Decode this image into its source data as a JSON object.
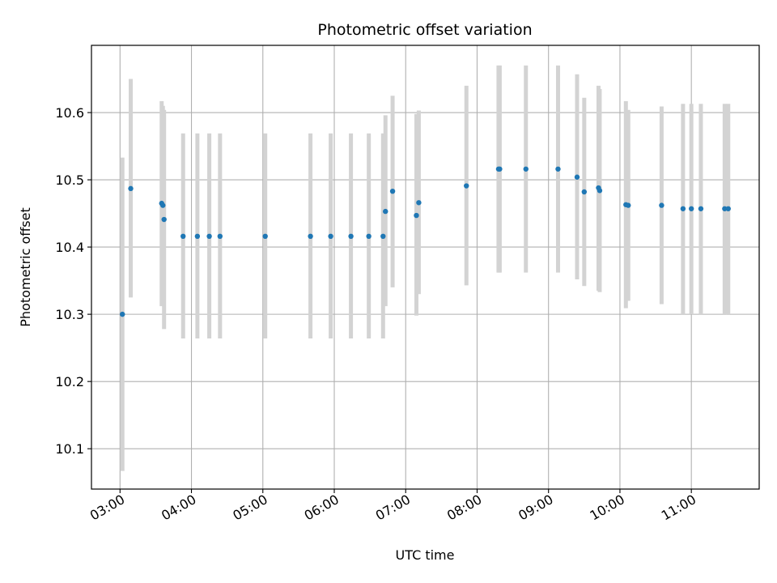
{
  "chart_data": {
    "type": "scatter",
    "title": "Photometric offset variation",
    "xlabel": "UTC time",
    "ylabel": "Photometric offset",
    "x_ticks": [
      "03:00",
      "04:00",
      "05:00",
      "06:00",
      "07:00",
      "08:00",
      "09:00",
      "10:00",
      "11:00"
    ],
    "y_ticks": [
      10.1,
      10.2,
      10.3,
      10.4,
      10.5,
      10.6
    ],
    "ylim": [
      10.04,
      10.7
    ],
    "xlim": [
      "02:36",
      "11:57"
    ],
    "grid": true,
    "colors": {
      "point": "#1f77b4",
      "error_bar": "#d3d3d3",
      "grid": "#b0b0b0"
    },
    "series": [
      {
        "points": [
          {
            "x": "03:02",
            "y": 10.3,
            "ylo": 10.067,
            "yhi": 10.533
          },
          {
            "x": "03:09",
            "y": 10.487,
            "ylo": 10.325,
            "yhi": 10.65
          },
          {
            "x": "03:35",
            "y": 10.465,
            "ylo": 10.312,
            "yhi": 10.617
          },
          {
            "x": "03:36",
            "y": 10.462,
            "ylo": 10.315,
            "yhi": 10.61
          },
          {
            "x": "03:37",
            "y": 10.441,
            "ylo": 10.278,
            "yhi": 10.604
          },
          {
            "x": "03:53",
            "y": 10.416,
            "ylo": 10.264,
            "yhi": 10.569
          },
          {
            "x": "04:05",
            "y": 10.416,
            "ylo": 10.264,
            "yhi": 10.569
          },
          {
            "x": "04:15",
            "y": 10.416,
            "ylo": 10.264,
            "yhi": 10.569
          },
          {
            "x": "04:24",
            "y": 10.416,
            "ylo": 10.264,
            "yhi": 10.569
          },
          {
            "x": "05:02",
            "y": 10.416,
            "ylo": 10.264,
            "yhi": 10.569
          },
          {
            "x": "05:40",
            "y": 10.416,
            "ylo": 10.264,
            "yhi": 10.569
          },
          {
            "x": "05:57",
            "y": 10.416,
            "ylo": 10.264,
            "yhi": 10.569
          },
          {
            "x": "06:14",
            "y": 10.416,
            "ylo": 10.264,
            "yhi": 10.569
          },
          {
            "x": "06:29",
            "y": 10.416,
            "ylo": 10.264,
            "yhi": 10.569
          },
          {
            "x": "06:41",
            "y": 10.416,
            "ylo": 10.264,
            "yhi": 10.569
          },
          {
            "x": "06:43",
            "y": 10.453,
            "ylo": 10.312,
            "yhi": 10.596
          },
          {
            "x": "06:49",
            "y": 10.483,
            "ylo": 10.34,
            "yhi": 10.625
          },
          {
            "x": "07:09",
            "y": 10.447,
            "ylo": 10.298,
            "yhi": 10.598
          },
          {
            "x": "07:11",
            "y": 10.466,
            "ylo": 10.33,
            "yhi": 10.603
          },
          {
            "x": "07:51",
            "y": 10.491,
            "ylo": 10.343,
            "yhi": 10.64
          },
          {
            "x": "08:18",
            "y": 10.516,
            "ylo": 10.362,
            "yhi": 10.67
          },
          {
            "x": "08:19",
            "y": 10.516,
            "ylo": 10.362,
            "yhi": 10.67
          },
          {
            "x": "08:41",
            "y": 10.516,
            "ylo": 10.362,
            "yhi": 10.67
          },
          {
            "x": "09:08",
            "y": 10.516,
            "ylo": 10.362,
            "yhi": 10.67
          },
          {
            "x": "09:24",
            "y": 10.504,
            "ylo": 10.352,
            "yhi": 10.657
          },
          {
            "x": "09:30",
            "y": 10.482,
            "ylo": 10.342,
            "yhi": 10.622
          },
          {
            "x": "09:42",
            "y": 10.488,
            "ylo": 10.335,
            "yhi": 10.64
          },
          {
            "x": "09:43",
            "y": 10.484,
            "ylo": 10.333,
            "yhi": 10.635
          },
          {
            "x": "10:05",
            "y": 10.463,
            "ylo": 10.309,
            "yhi": 10.617
          },
          {
            "x": "10:07",
            "y": 10.462,
            "ylo": 10.32,
            "yhi": 10.604
          },
          {
            "x": "10:35",
            "y": 10.462,
            "ylo": 10.315,
            "yhi": 10.609
          },
          {
            "x": "10:53",
            "y": 10.457,
            "ylo": 10.3,
            "yhi": 10.613
          },
          {
            "x": "11:00",
            "y": 10.457,
            "ylo": 10.3,
            "yhi": 10.613
          },
          {
            "x": "11:08",
            "y": 10.457,
            "ylo": 10.3,
            "yhi": 10.613
          },
          {
            "x": "11:28",
            "y": 10.457,
            "ylo": 10.3,
            "yhi": 10.613
          },
          {
            "x": "11:31",
            "y": 10.457,
            "ylo": 10.3,
            "yhi": 10.613
          }
        ]
      }
    ]
  }
}
